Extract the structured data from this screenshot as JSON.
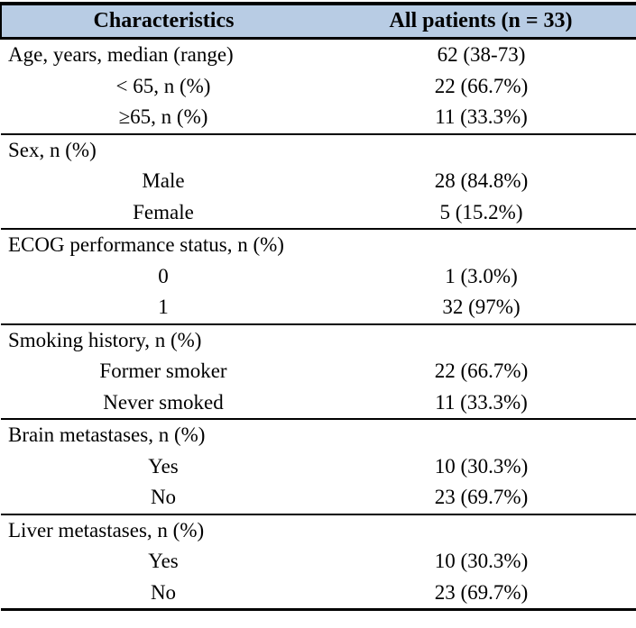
{
  "colors": {
    "header_background": "#b8cce4",
    "border": "#000000",
    "text": "#000000",
    "page_background": "#ffffff"
  },
  "table": {
    "columns": [
      "Characteristics",
      "All patients (n = 33)"
    ],
    "sections": [
      {
        "rows": [
          {
            "label": "Age, years, median (range)",
            "value": "62 (38-73)",
            "indent": false
          },
          {
            "label": "< 65, n (%)",
            "value": "22 (66.7%)",
            "indent": true
          },
          {
            "label": "≥65, n (%)",
            "value": "11 (33.3%)",
            "indent": true
          }
        ]
      },
      {
        "rows": [
          {
            "label": "Sex, n (%)",
            "value": "",
            "indent": false
          },
          {
            "label": "Male",
            "value": "28 (84.8%)",
            "indent": true
          },
          {
            "label": "Female",
            "value": "5 (15.2%)",
            "indent": true
          }
        ]
      },
      {
        "rows": [
          {
            "label": "ECOG performance status, n (%)",
            "value": "",
            "indent": false
          },
          {
            "label": "0",
            "value": "1 (3.0%)",
            "indent": true
          },
          {
            "label": "1",
            "value": "32 (97%)",
            "indent": true
          }
        ]
      },
      {
        "rows": [
          {
            "label": "Smoking history, n (%)",
            "value": "",
            "indent": false
          },
          {
            "label": "Former smoker",
            "value": "22 (66.7%)",
            "indent": true
          },
          {
            "label": "Never smoked",
            "value": "11 (33.3%)",
            "indent": true
          }
        ]
      },
      {
        "rows": [
          {
            "label": "Brain metastases, n (%)",
            "value": "",
            "indent": false
          },
          {
            "label": "Yes",
            "value": "10 (30.3%)",
            "indent": true
          },
          {
            "label": "No",
            "value": "23 (69.7%)",
            "indent": true
          }
        ]
      },
      {
        "rows": [
          {
            "label": "Liver metastases, n (%)",
            "value": "",
            "indent": false
          },
          {
            "label": "Yes",
            "value": "10 (30.3%)",
            "indent": true
          },
          {
            "label": "No",
            "value": "23 (69.7%)",
            "indent": true
          }
        ]
      }
    ]
  }
}
